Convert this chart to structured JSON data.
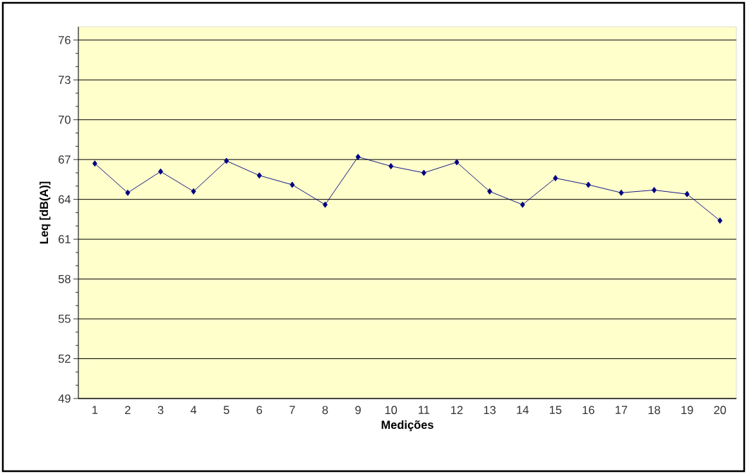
{
  "chart_data": {
    "type": "line",
    "xlabel": "Medições",
    "ylabel": "Leq [dB(A)]",
    "categories": [
      "1",
      "2",
      "3",
      "4",
      "5",
      "6",
      "7",
      "8",
      "9",
      "10",
      "11",
      "12",
      "13",
      "14",
      "15",
      "16",
      "17",
      "18",
      "19",
      "20"
    ],
    "values": [
      66.7,
      64.5,
      66.1,
      64.6,
      66.9,
      65.8,
      65.1,
      63.6,
      67.2,
      66.5,
      66.0,
      66.8,
      64.6,
      63.6,
      65.6,
      65.1,
      64.5,
      64.7,
      64.4,
      62.4
    ],
    "color": "#000080",
    "ylim": [
      49,
      77
    ],
    "yticks": [
      49,
      52,
      55,
      58,
      61,
      64,
      67,
      70,
      73,
      76
    ],
    "grid": "y",
    "marker": "diamond",
    "line_style": "solid"
  }
}
